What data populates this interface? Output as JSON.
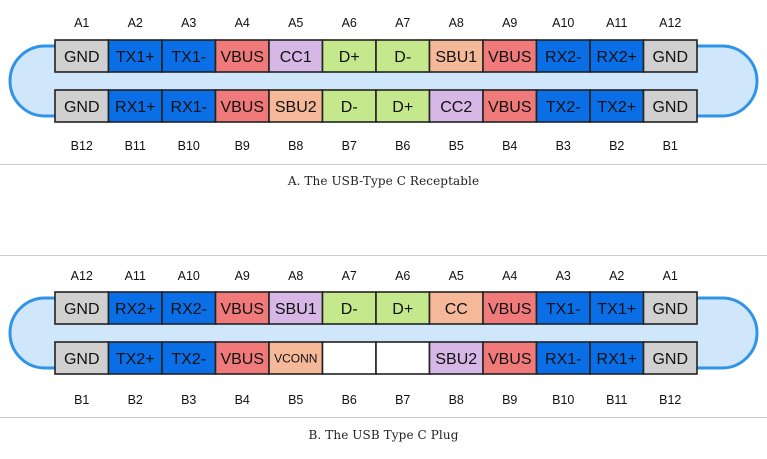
{
  "colors": {
    "gnd": "#d0d0d0",
    "tx_rx": "#0a6ee6",
    "vbus": "#f07a7a",
    "cc": "#d7b7e6",
    "data": "#c6e88c",
    "sbu": "#f5b99a",
    "empty": "#ffffff",
    "shell": "#cfe6fb",
    "shell_border": "#2f94e8",
    "outline": "#222222"
  },
  "receptacle": {
    "caption": "A. The USB-Type C Receptable",
    "top_labels": [
      "A1",
      "A2",
      "A3",
      "A4",
      "A5",
      "A6",
      "A7",
      "A8",
      "A9",
      "A10",
      "A11",
      "A12"
    ],
    "top_pins": [
      {
        "label": "GND",
        "color": "gnd"
      },
      {
        "label": "TX1+",
        "color": "tx_rx"
      },
      {
        "label": "TX1-",
        "color": "tx_rx"
      },
      {
        "label": "VBUS",
        "color": "vbus"
      },
      {
        "label": "CC1",
        "color": "cc"
      },
      {
        "label": "D+",
        "color": "data"
      },
      {
        "label": "D-",
        "color": "data"
      },
      {
        "label": "SBU1",
        "color": "sbu"
      },
      {
        "label": "VBUS",
        "color": "vbus"
      },
      {
        "label": "RX2-",
        "color": "tx_rx"
      },
      {
        "label": "RX2+",
        "color": "tx_rx"
      },
      {
        "label": "GND",
        "color": "gnd"
      }
    ],
    "bottom_pins": [
      {
        "label": "GND",
        "color": "gnd"
      },
      {
        "label": "RX1+",
        "color": "tx_rx"
      },
      {
        "label": "RX1-",
        "color": "tx_rx"
      },
      {
        "label": "VBUS",
        "color": "vbus"
      },
      {
        "label": "SBU2",
        "color": "sbu"
      },
      {
        "label": "D-",
        "color": "data"
      },
      {
        "label": "D+",
        "color": "data"
      },
      {
        "label": "CC2",
        "color": "cc"
      },
      {
        "label": "VBUS",
        "color": "vbus"
      },
      {
        "label": "TX2-",
        "color": "tx_rx"
      },
      {
        "label": "TX2+",
        "color": "tx_rx"
      },
      {
        "label": "GND",
        "color": "gnd"
      }
    ],
    "bottom_labels": [
      "B12",
      "B11",
      "B10",
      "B9",
      "B8",
      "B7",
      "B6",
      "B5",
      "B4",
      "B3",
      "B2",
      "B1"
    ]
  },
  "plug": {
    "caption": "B. The USB Type C Plug",
    "top_labels": [
      "A12",
      "A11",
      "A10",
      "A9",
      "A8",
      "A7",
      "A6",
      "A5",
      "A4",
      "A3",
      "A2",
      "A1"
    ],
    "top_pins": [
      {
        "label": "GND",
        "color": "gnd"
      },
      {
        "label": "RX2+",
        "color": "tx_rx"
      },
      {
        "label": "RX2-",
        "color": "tx_rx"
      },
      {
        "label": "VBUS",
        "color": "vbus"
      },
      {
        "label": "SBU1",
        "color": "cc"
      },
      {
        "label": "D-",
        "color": "data"
      },
      {
        "label": "D+",
        "color": "data"
      },
      {
        "label": "CC",
        "color": "sbu"
      },
      {
        "label": "VBUS",
        "color": "vbus"
      },
      {
        "label": "TX1-",
        "color": "tx_rx"
      },
      {
        "label": "TX1+",
        "color": "tx_rx"
      },
      {
        "label": "GND",
        "color": "gnd"
      }
    ],
    "bottom_pins": [
      {
        "label": "GND",
        "color": "gnd"
      },
      {
        "label": "TX2+",
        "color": "tx_rx"
      },
      {
        "label": "TX2-",
        "color": "tx_rx"
      },
      {
        "label": "VBUS",
        "color": "vbus"
      },
      {
        "label": "VCONN",
        "color": "sbu"
      },
      {
        "label": "",
        "color": "empty"
      },
      {
        "label": "",
        "color": "empty"
      },
      {
        "label": "SBU2",
        "color": "cc"
      },
      {
        "label": "VBUS",
        "color": "vbus"
      },
      {
        "label": "RX1-",
        "color": "tx_rx"
      },
      {
        "label": "RX1+",
        "color": "tx_rx"
      },
      {
        "label": "GND",
        "color": "gnd"
      }
    ],
    "bottom_labels": [
      "B1",
      "B2",
      "B3",
      "B4",
      "B5",
      "B6",
      "B7",
      "B8",
      "B9",
      "B10",
      "B11",
      "B12"
    ]
  }
}
